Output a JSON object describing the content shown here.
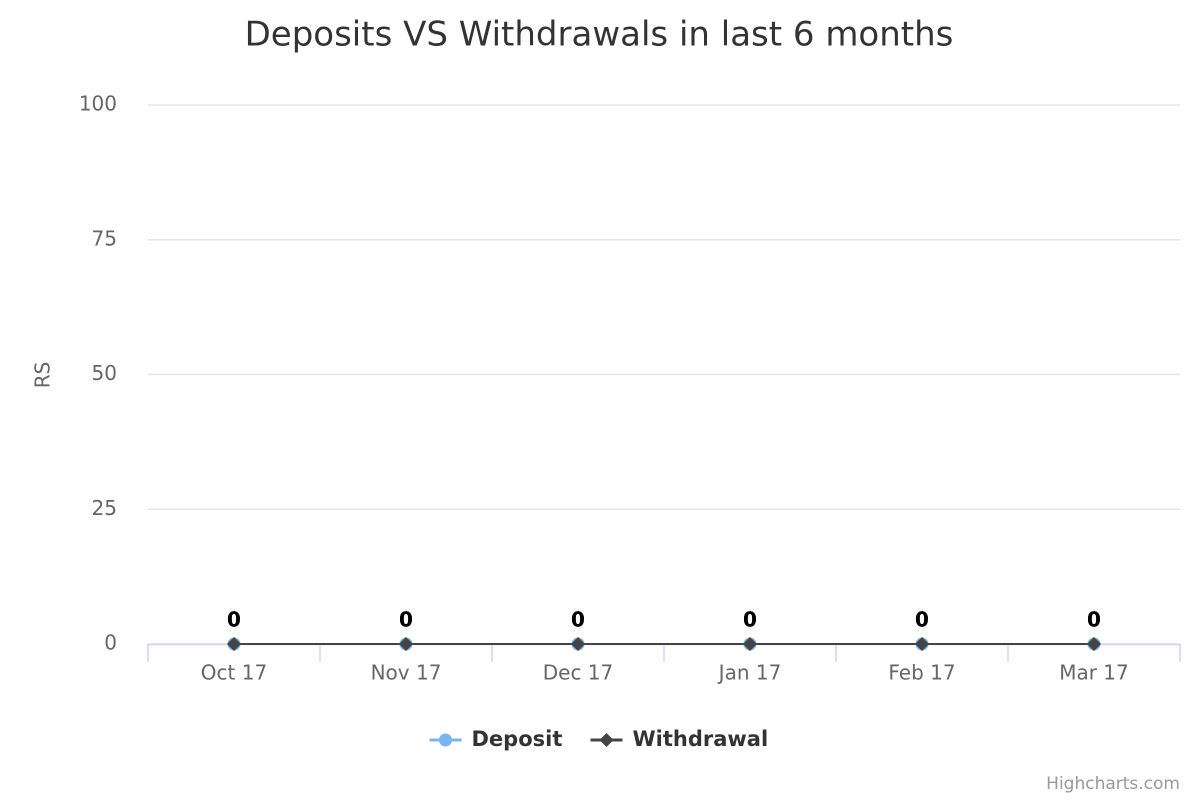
{
  "chart_data": {
    "type": "line",
    "title": "Deposits VS Withdrawals in last 6 months",
    "y_label": "RS",
    "categories": [
      "Oct 17",
      "Nov 17",
      "Dec 17",
      "Jan 17",
      "Feb 17",
      "Mar 17"
    ],
    "series": [
      {
        "name": "Deposit",
        "color": "#7cb5ec",
        "marker": "circle",
        "values": [
          0,
          0,
          0,
          0,
          0,
          0
        ]
      },
      {
        "name": "Withdrawal",
        "color": "#434348",
        "marker": "diamond",
        "values": [
          0,
          0,
          0,
          0,
          0,
          0
        ]
      }
    ],
    "ylim": [
      0,
      100
    ],
    "yticks": [
      0,
      25,
      50,
      75,
      100
    ],
    "grid": true,
    "data_labels": true,
    "legend": "bottom",
    "credits": "Highcharts.com"
  }
}
